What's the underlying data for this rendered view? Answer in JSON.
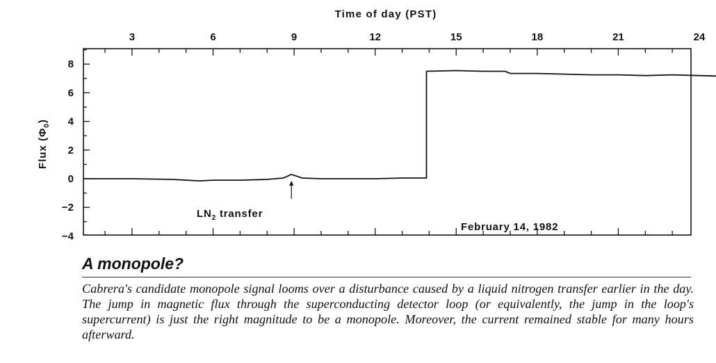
{
  "chart_data": {
    "type": "line",
    "title": "",
    "x_top_label": "Time of day (PST)",
    "x_ticks": [
      3,
      6,
      9,
      12,
      15,
      18,
      21,
      24
    ],
    "xlim": [
      1.2,
      26.3
    ],
    "ylabel": "Flux (Φ",
    "ylabel_sub": "0",
    "ylabel_close": ")",
    "y_ticks": [
      "8",
      "6",
      "4",
      "2",
      "0",
      "−2",
      "−4"
    ],
    "ylim": [
      -4,
      9
    ],
    "grid": false,
    "series": [
      {
        "name": "",
        "points": [
          [
            1.2,
            0.0
          ],
          [
            3.0,
            0.0
          ],
          [
            4.5,
            -0.05
          ],
          [
            5.5,
            -0.15
          ],
          [
            6.0,
            -0.1
          ],
          [
            7.0,
            -0.1
          ],
          [
            8.0,
            -0.05
          ],
          [
            8.6,
            0.05
          ],
          [
            8.9,
            0.3
          ],
          [
            9.3,
            0.05
          ],
          [
            10.0,
            0.0
          ],
          [
            11.0,
            0.0
          ],
          [
            12.0,
            0.0
          ],
          [
            13.0,
            0.05
          ],
          [
            13.9,
            0.05
          ],
          [
            13.9,
            7.5
          ],
          [
            15.0,
            7.55
          ],
          [
            16.0,
            7.5
          ],
          [
            16.8,
            7.5
          ],
          [
            17.0,
            7.35
          ],
          [
            18.0,
            7.35
          ],
          [
            19.0,
            7.3
          ],
          [
            20.0,
            7.25
          ],
          [
            21.0,
            7.25
          ],
          [
            22.0,
            7.2
          ],
          [
            23.0,
            7.25
          ],
          [
            24.0,
            7.2
          ],
          [
            25.0,
            7.15
          ],
          [
            26.3,
            7.1
          ]
        ]
      }
    ],
    "annotations": [
      {
        "text": "LN",
        "sub": "2",
        "rest": " transfer",
        "x": 8.9,
        "y": 0.3
      },
      {
        "text": "February 14, 1982"
      }
    ]
  },
  "caption": {
    "heading": "A monopole?",
    "text": "Cabrera's candidate monopole signal looms over a disturbance caused by a liquid nitrogen transfer earlier in the day. The jump in magnetic flux through the superconducting detector loop (or equivalently, the jump in the loop's supercurrent) is just the right magnitude to be a monopole. Moreover, the current remained stable for many hours afterward."
  }
}
